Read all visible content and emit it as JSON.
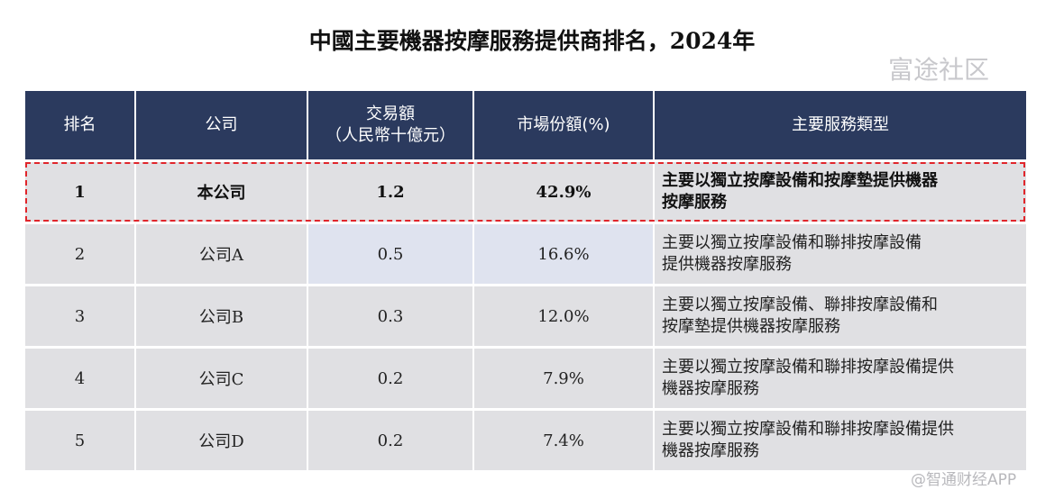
{
  "title": "中國主要機器按摩服務提供商排名，2024年",
  "headers": [
    "排名",
    "公司",
    "交易額",
    "（人民幣十億元）",
    "市場份額(%)",
    "主要服務類型"
  ],
  "rows": [
    {
      "rank": "1",
      "company": "本公司",
      "value": "1.2",
      "share": "42.9%",
      "service1": "主要以獨立按摩設備和按摩墊提供機器",
      "service2": "按摩服務"
    },
    {
      "rank": "2",
      "company": "公司A",
      "value": "0.5",
      "share": "16.6%",
      "service1": "主要以獨立按摩設備和聯排按摩設備",
      "service2": "提供機器按摩服務"
    },
    {
      "rank": "3",
      "company": "公司B",
      "value": "0.3",
      "share": "12.0%",
      "service1": "主要以獨立按摩設備、聯排按摩設備和",
      "service2": "按摩墊提供機器按摩服務"
    },
    {
      "rank": "4",
      "company": "公司C",
      "value": "0.2",
      "share": "7.9%",
      "service1": "主要以獨立按摩設備和聯排按摩設備提供",
      "service2": "機器按摩服務"
    },
    {
      "rank": "5",
      "company": "公司D",
      "value": "0.2",
      "share": "7.4%",
      "service1": "主要以獨立按摩設備和聯排按摩設備提供",
      "service2": "機器按摩服務"
    }
  ],
  "watermark1": "富途社区",
  "watermark2": "@智通财经APP"
}
